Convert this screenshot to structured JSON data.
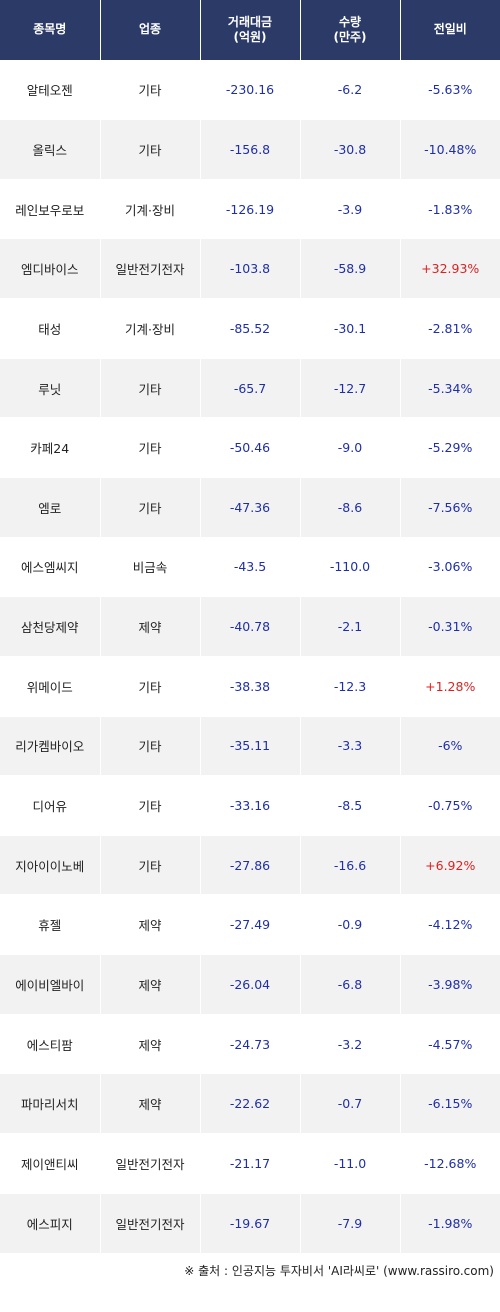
{
  "columns": [
    "종목명",
    "업종",
    "거래대금\n(억원)",
    "수량\n(만주)",
    "전일비"
  ],
  "rows": [
    {
      "name": "알테오젠",
      "sector": "기타",
      "amount": "-230.16",
      "qty": "-6.2",
      "change": "-5.63%",
      "dir": "down"
    },
    {
      "name": "올릭스",
      "sector": "기타",
      "amount": "-156.8",
      "qty": "-30.8",
      "change": "-10.48%",
      "dir": "down"
    },
    {
      "name": "레인보우로보",
      "sector": "기계·장비",
      "amount": "-126.19",
      "qty": "-3.9",
      "change": "-1.83%",
      "dir": "down"
    },
    {
      "name": "엠디바이스",
      "sector": "일반전기전자",
      "amount": "-103.8",
      "qty": "-58.9",
      "change": "+32.93%",
      "dir": "up"
    },
    {
      "name": "태성",
      "sector": "기계·장비",
      "amount": "-85.52",
      "qty": "-30.1",
      "change": "-2.81%",
      "dir": "down"
    },
    {
      "name": "루닛",
      "sector": "기타",
      "amount": "-65.7",
      "qty": "-12.7",
      "change": "-5.34%",
      "dir": "down"
    },
    {
      "name": "카페24",
      "sector": "기타",
      "amount": "-50.46",
      "qty": "-9.0",
      "change": "-5.29%",
      "dir": "down"
    },
    {
      "name": "엠로",
      "sector": "기타",
      "amount": "-47.36",
      "qty": "-8.6",
      "change": "-7.56%",
      "dir": "down"
    },
    {
      "name": "에스엠씨지",
      "sector": "비금속",
      "amount": "-43.5",
      "qty": "-110.0",
      "change": "-3.06%",
      "dir": "down"
    },
    {
      "name": "삼천당제약",
      "sector": "제약",
      "amount": "-40.78",
      "qty": "-2.1",
      "change": "-0.31%",
      "dir": "down"
    },
    {
      "name": "위메이드",
      "sector": "기타",
      "amount": "-38.38",
      "qty": "-12.3",
      "change": "+1.28%",
      "dir": "up"
    },
    {
      "name": "리가켐바이오",
      "sector": "기타",
      "amount": "-35.11",
      "qty": "-3.3",
      "change": "-6%",
      "dir": "down"
    },
    {
      "name": "디어유",
      "sector": "기타",
      "amount": "-33.16",
      "qty": "-8.5",
      "change": "-0.75%",
      "dir": "down"
    },
    {
      "name": "지아이이노베",
      "sector": "기타",
      "amount": "-27.86",
      "qty": "-16.6",
      "change": "+6.92%",
      "dir": "up"
    },
    {
      "name": "휴젤",
      "sector": "제약",
      "amount": "-27.49",
      "qty": "-0.9",
      "change": "-4.12%",
      "dir": "down"
    },
    {
      "name": "에이비엘바이",
      "sector": "제약",
      "amount": "-26.04",
      "qty": "-6.8",
      "change": "-3.98%",
      "dir": "down"
    },
    {
      "name": "에스티팜",
      "sector": "제약",
      "amount": "-24.73",
      "qty": "-3.2",
      "change": "-4.57%",
      "dir": "down"
    },
    {
      "name": "파마리서치",
      "sector": "제약",
      "amount": "-22.62",
      "qty": "-0.7",
      "change": "-6.15%",
      "dir": "down"
    },
    {
      "name": "제이앤티씨",
      "sector": "일반전기전자",
      "amount": "-21.17",
      "qty": "-11.0",
      "change": "-12.68%",
      "dir": "down"
    },
    {
      "name": "에스피지",
      "sector": "일반전기전자",
      "amount": "-19.67",
      "qty": "-7.9",
      "change": "-1.98%",
      "dir": "down"
    }
  ],
  "footer": "※ 출처 : 인공지능 투자비서 'AI라씨로' (www.rassiro.com)",
  "colors": {
    "header_bg": "#2b3a67",
    "alt_row_bg": "#f2f2f2",
    "up": "#e11f1f",
    "down": "#1f2fa8"
  }
}
